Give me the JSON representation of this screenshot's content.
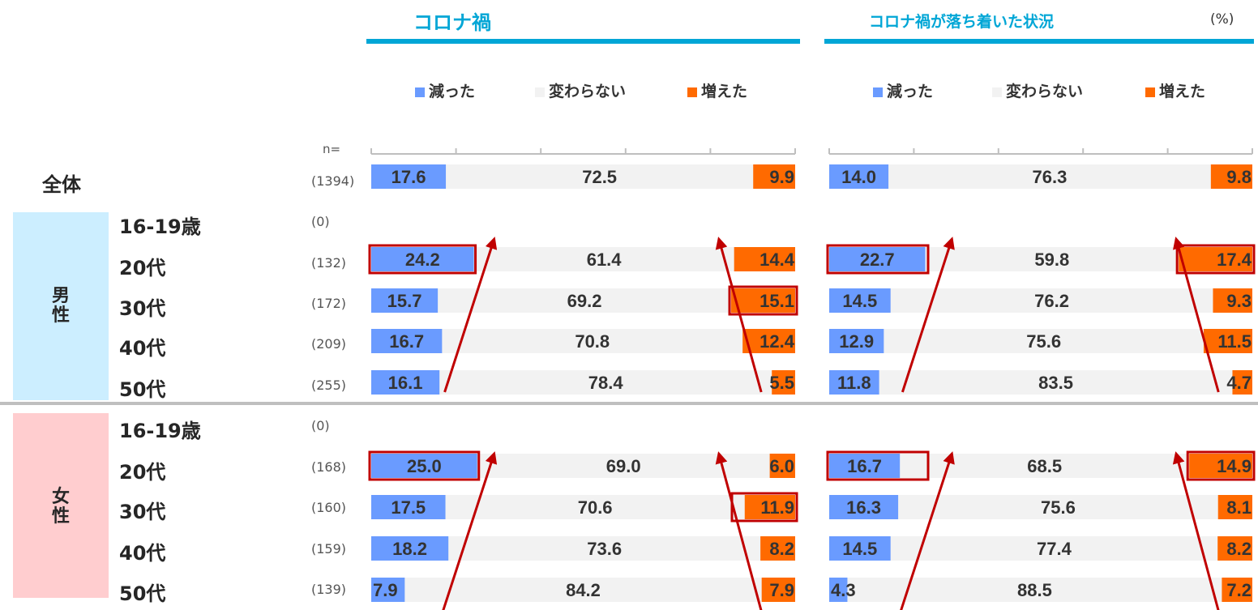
{
  "unit": "(%)",
  "n_prefix": "n=",
  "total_label": "全体",
  "genders": [
    {
      "label": "男\n性",
      "color": "#CCEEFF"
    },
    {
      "label": "女\n性",
      "color": "#FFCDCF"
    }
  ],
  "colors": {
    "decreased": "#6A9BFF",
    "unchanged": "#F2F2F2",
    "increased": "#FF6A00",
    "title": "#00A6D6",
    "highlight": "#C00000"
  },
  "rows": [
    {
      "label": "",
      "n": "(1394)"
    },
    {
      "label": "16-19歳",
      "n": "(0)"
    },
    {
      "label": "20代",
      "n": "(132)"
    },
    {
      "label": "30代",
      "n": "(172)"
    },
    {
      "label": "40代",
      "n": "(209)"
    },
    {
      "label": "50代",
      "n": "(255)"
    },
    {
      "label": "16-19歳",
      "n": "(0)"
    },
    {
      "label": "20代",
      "n": "(168)"
    },
    {
      "label": "30代",
      "n": "(160)"
    },
    {
      "label": "40代",
      "n": "(159)"
    },
    {
      "label": "50代",
      "n": "(139)"
    }
  ],
  "chart_data": [
    {
      "type": "bar",
      "stacked": true,
      "orientation": "horizontal",
      "title": "コロナ禍",
      "xlim": [
        0,
        100
      ],
      "legend": [
        "減った",
        "変わらない",
        "増えた"
      ],
      "categories": [
        "全体",
        "男性 16-19歳",
        "男性 20代",
        "男性 30代",
        "男性 40代",
        "男性 50代",
        "女性 16-19歳",
        "女性 20代",
        "女性 30代",
        "女性 40代",
        "女性 50代"
      ],
      "series": [
        {
          "name": "減った",
          "values": [
            17.6,
            null,
            24.2,
            15.7,
            16.7,
            16.1,
            null,
            25.0,
            17.5,
            18.2,
            7.9
          ]
        },
        {
          "name": "変わらない",
          "values": [
            72.5,
            null,
            61.4,
            69.2,
            70.8,
            78.4,
            null,
            69.0,
            70.6,
            73.6,
            84.2
          ]
        },
        {
          "name": "増えた",
          "values": [
            9.9,
            null,
            14.4,
            15.1,
            12.4,
            5.5,
            null,
            6.0,
            11.9,
            8.2,
            7.9
          ]
        }
      ],
      "labels": [
        [
          "17.6",
          "72.5",
          "9.9"
        ],
        null,
        [
          "24.2",
          "61.4",
          "14.4"
        ],
        [
          "15.7",
          "69.2",
          "15.1"
        ],
        [
          "16.7",
          "70.8",
          "12.4"
        ],
        [
          "16.1",
          "78.4",
          "5.5"
        ],
        null,
        [
          "25.0",
          "69.0",
          "6.0"
        ],
        [
          "17.5",
          "70.6",
          "11.9"
        ],
        [
          "18.2",
          "73.6",
          "8.2"
        ],
        [
          "7.9",
          "84.2",
          "7.9"
        ]
      ],
      "highlights": [
        [
          2,
          0
        ],
        [
          3,
          2
        ],
        [
          7,
          0
        ],
        [
          8,
          2
        ]
      ]
    },
    {
      "type": "bar",
      "stacked": true,
      "orientation": "horizontal",
      "title": "コロナ禍が落ち着いた状況",
      "xlim": [
        0,
        100
      ],
      "legend": [
        "減った",
        "変わらない",
        "増えた"
      ],
      "categories": [
        "全体",
        "男性 16-19歳",
        "男性 20代",
        "男性 30代",
        "男性 40代",
        "男性 50代",
        "女性 16-19歳",
        "女性 20代",
        "女性 30代",
        "女性 40代",
        "女性 50代"
      ],
      "series": [
        {
          "name": "減った",
          "values": [
            14.0,
            null,
            22.7,
            14.5,
            12.9,
            11.8,
            null,
            16.7,
            16.3,
            14.5,
            4.3
          ]
        },
        {
          "name": "変わらない",
          "values": [
            76.3,
            null,
            59.8,
            76.2,
            75.6,
            83.5,
            null,
            68.5,
            75.6,
            77.4,
            88.5
          ]
        },
        {
          "name": "増えた",
          "values": [
            9.8,
            null,
            17.4,
            9.3,
            11.5,
            4.7,
            null,
            14.9,
            8.1,
            8.2,
            7.2
          ]
        }
      ],
      "labels": [
        [
          "14.0",
          "76.3",
          "9.8"
        ],
        null,
        [
          "22.7",
          "59.8",
          "17.4"
        ],
        [
          "14.5",
          "76.2",
          "9.3"
        ],
        [
          "12.9",
          "75.6",
          "11.5"
        ],
        [
          "11.8",
          "83.5",
          "4.7"
        ],
        null,
        [
          "16.7",
          "68.5",
          "14.9"
        ],
        [
          "16.3",
          "75.6",
          "8.1"
        ],
        [
          "14.5",
          "77.4",
          "8.2"
        ],
        [
          "4.3",
          "88.5",
          "7.2"
        ]
      ],
      "highlights": [
        [
          2,
          0
        ],
        [
          2,
          2
        ],
        [
          7,
          0
        ],
        [
          7,
          2
        ]
      ]
    }
  ]
}
